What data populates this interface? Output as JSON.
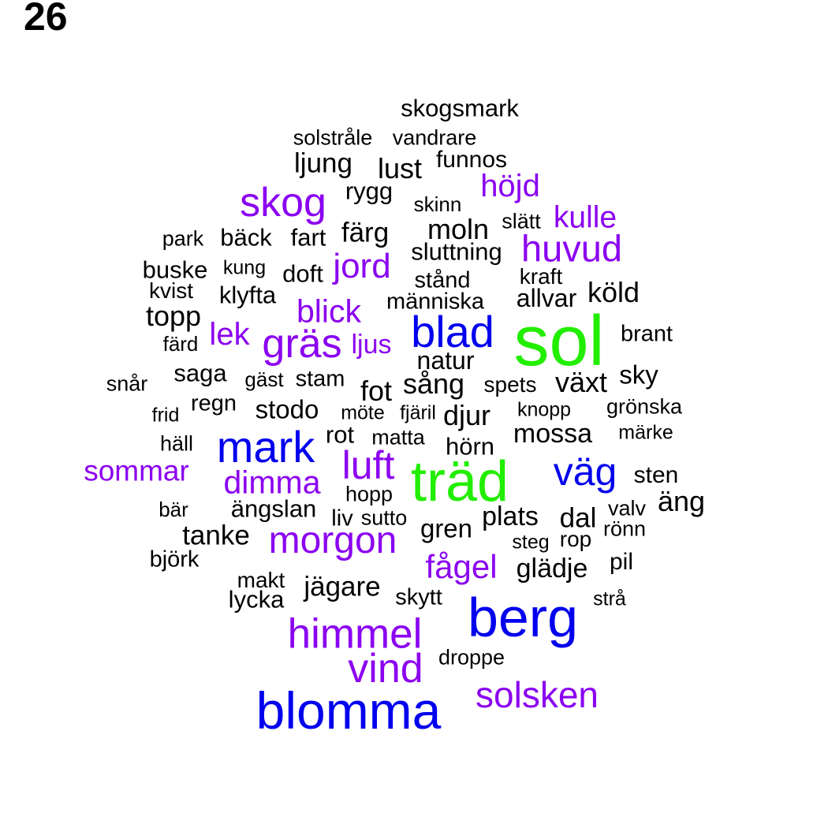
{
  "page_number": "26",
  "colors": {
    "black": "#000000",
    "purple": "#8b00f0",
    "blue": "#0000ee",
    "green": "#22ee00"
  },
  "words": [
    {
      "text": "skogsmark",
      "color": "black"
    },
    {
      "text": "solstråle",
      "color": "black"
    },
    {
      "text": "vandrare",
      "color": "black"
    },
    {
      "text": "ljung",
      "color": "black"
    },
    {
      "text": "lust",
      "color": "black"
    },
    {
      "text": "funnos",
      "color": "black"
    },
    {
      "text": "höjd",
      "color": "purple"
    },
    {
      "text": "skog",
      "color": "purple"
    },
    {
      "text": "rygg",
      "color": "black"
    },
    {
      "text": "skinn",
      "color": "black"
    },
    {
      "text": "kulle",
      "color": "purple"
    },
    {
      "text": "slätt",
      "color": "black"
    },
    {
      "text": "park",
      "color": "black"
    },
    {
      "text": "bäck",
      "color": "black"
    },
    {
      "text": "fart",
      "color": "black"
    },
    {
      "text": "färg",
      "color": "black"
    },
    {
      "text": "moln",
      "color": "black"
    },
    {
      "text": "huvud",
      "color": "purple"
    },
    {
      "text": "sluttning",
      "color": "black"
    },
    {
      "text": "buske",
      "color": "black"
    },
    {
      "text": "kung",
      "color": "black"
    },
    {
      "text": "doft",
      "color": "black"
    },
    {
      "text": "jord",
      "color": "purple"
    },
    {
      "text": "stånd",
      "color": "black"
    },
    {
      "text": "kraft",
      "color": "black"
    },
    {
      "text": "kvist",
      "color": "black"
    },
    {
      "text": "klyfta",
      "color": "black"
    },
    {
      "text": "människa",
      "color": "black"
    },
    {
      "text": "allvar",
      "color": "black"
    },
    {
      "text": "köld",
      "color": "black"
    },
    {
      "text": "topp",
      "color": "black"
    },
    {
      "text": "blick",
      "color": "purple"
    },
    {
      "text": "blad",
      "color": "blue"
    },
    {
      "text": "sol",
      "color": "green"
    },
    {
      "text": "brant",
      "color": "black"
    },
    {
      "text": "färd",
      "color": "black"
    },
    {
      "text": "lek",
      "color": "purple"
    },
    {
      "text": "gräs",
      "color": "purple"
    },
    {
      "text": "ljus",
      "color": "purple"
    },
    {
      "text": "natur",
      "color": "black"
    },
    {
      "text": "saga",
      "color": "black"
    },
    {
      "text": "gäst",
      "color": "black"
    },
    {
      "text": "stam",
      "color": "black"
    },
    {
      "text": "sky",
      "color": "black"
    },
    {
      "text": "snår",
      "color": "black"
    },
    {
      "text": "fot",
      "color": "black"
    },
    {
      "text": "sång",
      "color": "black"
    },
    {
      "text": "spets",
      "color": "black"
    },
    {
      "text": "växt",
      "color": "black"
    },
    {
      "text": "regn",
      "color": "black"
    },
    {
      "text": "frid",
      "color": "black"
    },
    {
      "text": "stodo",
      "color": "black"
    },
    {
      "text": "möte",
      "color": "black"
    },
    {
      "text": "fjäril",
      "color": "black"
    },
    {
      "text": "djur",
      "color": "black"
    },
    {
      "text": "knopp",
      "color": "black"
    },
    {
      "text": "grönska",
      "color": "black"
    },
    {
      "text": "mark",
      "color": "blue"
    },
    {
      "text": "rot",
      "color": "black"
    },
    {
      "text": "matta",
      "color": "black"
    },
    {
      "text": "mossa",
      "color": "black"
    },
    {
      "text": "märke",
      "color": "black"
    },
    {
      "text": "häll",
      "color": "black"
    },
    {
      "text": "hörn",
      "color": "black"
    },
    {
      "text": "sommar",
      "color": "purple"
    },
    {
      "text": "luft",
      "color": "purple"
    },
    {
      "text": "träd",
      "color": "green"
    },
    {
      "text": "väg",
      "color": "blue"
    },
    {
      "text": "sten",
      "color": "black"
    },
    {
      "text": "dimma",
      "color": "purple"
    },
    {
      "text": "hopp",
      "color": "black"
    },
    {
      "text": "äng",
      "color": "black"
    },
    {
      "text": "bär",
      "color": "black"
    },
    {
      "text": "ängslan",
      "color": "black"
    },
    {
      "text": "valv",
      "color": "black"
    },
    {
      "text": "liv",
      "color": "black"
    },
    {
      "text": "sutto",
      "color": "black"
    },
    {
      "text": "plats",
      "color": "black"
    },
    {
      "text": "dal",
      "color": "black"
    },
    {
      "text": "gren",
      "color": "black"
    },
    {
      "text": "rönn",
      "color": "black"
    },
    {
      "text": "tanke",
      "color": "black"
    },
    {
      "text": "morgon",
      "color": "purple"
    },
    {
      "text": "steg",
      "color": "black"
    },
    {
      "text": "rop",
      "color": "black"
    },
    {
      "text": "björk",
      "color": "black"
    },
    {
      "text": "pil",
      "color": "black"
    },
    {
      "text": "fågel",
      "color": "purple"
    },
    {
      "text": "glädje",
      "color": "black"
    },
    {
      "text": "makt",
      "color": "black"
    },
    {
      "text": "jägare",
      "color": "black"
    },
    {
      "text": "lycka",
      "color": "black"
    },
    {
      "text": "skytt",
      "color": "black"
    },
    {
      "text": "strå",
      "color": "black"
    },
    {
      "text": "berg",
      "color": "blue"
    },
    {
      "text": "himmel",
      "color": "purple"
    },
    {
      "text": "droppe",
      "color": "black"
    },
    {
      "text": "vind",
      "color": "purple"
    },
    {
      "text": "solsken",
      "color": "purple"
    },
    {
      "text": "blomma",
      "color": "blue"
    }
  ]
}
